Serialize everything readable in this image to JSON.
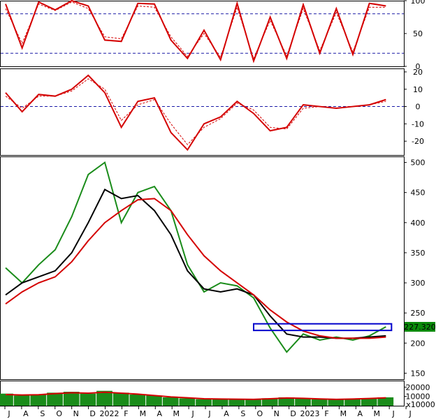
{
  "chart_data": [
    {
      "panel": "oscillator-top",
      "type": "line",
      "ylim": [
        0,
        100
      ],
      "y_ticks": [
        "100",
        "50",
        "0"
      ],
      "reference_lines": [
        80,
        20
      ],
      "x": [
        "2021-07",
        "2021-08",
        "2021-09",
        "2021-10",
        "2021-11",
        "2021-12",
        "2022-01",
        "2022-02",
        "2022-03",
        "2022-04",
        "2022-05",
        "2022-06",
        "2022-07",
        "2022-08",
        "2022-09",
        "2022-10",
        "2022-11",
        "2022-12",
        "2023-01",
        "2023-02",
        "2023-03",
        "2023-04",
        "2023-05",
        "2023-06"
      ],
      "series": [
        {
          "color": "#d40000",
          "values": [
            95,
            28,
            98,
            86,
            100,
            92,
            40,
            38,
            96,
            95,
            40,
            12,
            55,
            10,
            96,
            8,
            75,
            12,
            94,
            20,
            88,
            18,
            96,
            92
          ]
        },
        {
          "color": "#d40000",
          "dashed": true,
          "values": [
            88,
            35,
            95,
            85,
            98,
            88,
            45,
            42,
            92,
            90,
            45,
            15,
            50,
            14,
            90,
            12,
            70,
            16,
            88,
            24,
            82,
            22,
            90,
            90
          ]
        }
      ]
    },
    {
      "panel": "oscillator-middle",
      "type": "line",
      "ylim": [
        -28,
        22
      ],
      "y_ticks": [
        "20",
        "10",
        "0",
        "-10",
        "-20"
      ],
      "reference_lines": [
        0
      ],
      "x": [
        "2021-07",
        "2021-08",
        "2021-09",
        "2021-10",
        "2021-11",
        "2021-12",
        "2022-01",
        "2022-02",
        "2022-03",
        "2022-04",
        "2022-05",
        "2022-06",
        "2022-07",
        "2022-08",
        "2022-09",
        "2022-10",
        "2022-11",
        "2022-12",
        "2023-01",
        "2023-02",
        "2023-03",
        "2023-04",
        "2023-05",
        "2023-06"
      ],
      "series": [
        {
          "color": "#d40000",
          "values": [
            8,
            -3,
            7,
            6,
            10,
            18,
            8,
            -12,
            3,
            5,
            -15,
            -25,
            -10,
            -6,
            3,
            -4,
            -14,
            -12,
            1,
            0,
            -1,
            0,
            1,
            4
          ]
        },
        {
          "color": "#d40000",
          "dashed": true,
          "values": [
            6,
            -1,
            6,
            6,
            9,
            16,
            10,
            -8,
            1,
            4,
            -10,
            -22,
            -12,
            -7,
            2,
            -2,
            -12,
            -13,
            -1,
            0,
            -1,
            0,
            1,
            3
          ]
        }
      ]
    },
    {
      "panel": "price",
      "type": "line",
      "ylim": [
        140,
        510
      ],
      "y_ticks": [
        "500",
        "450",
        "400",
        "350",
        "300",
        "250",
        "200",
        "150"
      ],
      "last_value_label": "227.320",
      "x": [
        "2021-07",
        "2021-08",
        "2021-09",
        "2021-10",
        "2021-11",
        "2021-12",
        "2022-01",
        "2022-02",
        "2022-03",
        "2022-04",
        "2022-05",
        "2022-06",
        "2022-07",
        "2022-08",
        "2022-09",
        "2022-10",
        "2022-11",
        "2022-12",
        "2023-01",
        "2023-02",
        "2023-03",
        "2023-04",
        "2023-05",
        "2023-06"
      ],
      "series": [
        {
          "name": "",
          "color": "#1a8c1a",
          "values": [
            325,
            300,
            330,
            355,
            410,
            480,
            500,
            400,
            450,
            460,
            420,
            330,
            285,
            300,
            295,
            275,
            225,
            185,
            215,
            205,
            210,
            205,
            212,
            227
          ]
        },
        {
          "name": "",
          "color": "#000000",
          "values": [
            280,
            300,
            310,
            320,
            350,
            400,
            455,
            440,
            445,
            420,
            380,
            320,
            290,
            285,
            290,
            280,
            245,
            215,
            210,
            210,
            208,
            208,
            210,
            212
          ]
        },
        {
          "name": "",
          "color": "#d40000",
          "values": [
            265,
            285,
            300,
            310,
            335,
            370,
            400,
            420,
            438,
            440,
            420,
            380,
            345,
            320,
            300,
            280,
            255,
            235,
            220,
            212,
            208,
            208,
            208,
            210
          ]
        }
      ],
      "annotation_box": {
        "from": "2022-10",
        "to": "2023-06",
        "low": 221,
        "high": 232,
        "color": "#0000cc"
      }
    },
    {
      "panel": "volume",
      "type": "bar",
      "ylim": [
        0,
        27000
      ],
      "y_ticks": [
        "20000",
        "10000"
      ],
      "unit_label": "x10000",
      "x": [
        "2021-07",
        "2021-08",
        "2021-09",
        "2021-10",
        "2021-11",
        "2021-12",
        "2022-01",
        "2022-02",
        "2022-03",
        "2022-04",
        "2022-05",
        "2022-06",
        "2022-07",
        "2022-08",
        "2022-09",
        "2022-10",
        "2022-11",
        "2022-12",
        "2023-01",
        "2023-02",
        "2023-03",
        "2023-04",
        "2023-05",
        "2023-06"
      ],
      "series": [
        {
          "color": "#1a8c1a",
          "values": [
            13000,
            11000,
            12000,
            14000,
            15000,
            13000,
            16000,
            14000,
            12000,
            11000,
            9000,
            8000,
            7000,
            7500,
            7000,
            6500,
            8000,
            9000,
            8000,
            7000,
            6500,
            7500,
            8000,
            9000
          ]
        },
        {
          "color": "#d40000",
          "values": [
            12000,
            11500,
            11800,
            13000,
            14000,
            13500,
            14500,
            13500,
            12500,
            11000,
            9500,
            8500,
            7500,
            7200,
            7000,
            6800,
            7500,
            8300,
            8000,
            7300,
            6800,
            7200,
            7800,
            8500
          ]
        }
      ]
    }
  ],
  "x_labels": [
    "J",
    "A",
    "S",
    "O",
    "N",
    "D",
    "2022",
    "F",
    "M",
    "A",
    "M",
    "J",
    "J",
    "A",
    "S",
    "O",
    "N",
    "D",
    "2023",
    "F",
    "M",
    "A",
    "M",
    "J",
    "J"
  ]
}
